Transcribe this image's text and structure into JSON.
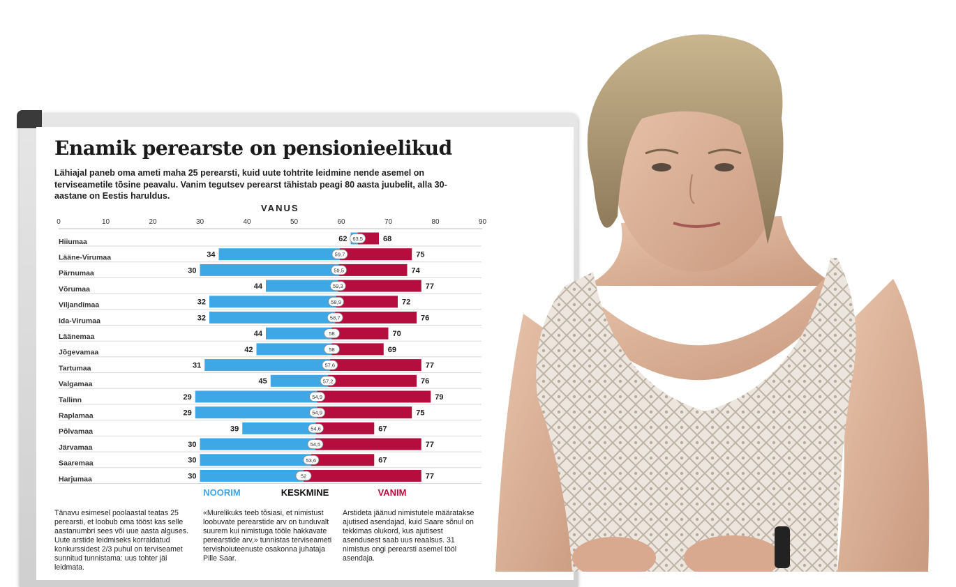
{
  "article": {
    "title": "Enamik perearste on pensionieelikud",
    "subtitle": "Lähiajal paneb oma ameti maha 25 perearsti, kuid uute tohtrite leidmine nende asemel on terviseametile tõsine peavalu.  Vanim tegutsev perearst tähistab peagi 80 aasta juubelit, alla 30-aastane on Eestis haruldus.",
    "columns": [
      "Tänavu esimesel poolaastal teatas 25 perearsti, et loobub oma tööst kas selle aastanumbri sees või uue aasta alguses. Uute arstide leidmiseks korraldatud konkurssidest 2/3 puhul on terviseamet sunnitud tunnistama: uus tohter jäi leidmata.",
      "«Murelikuks teeb tõsiasi, et nimistust loobuvate perearstide arv on tunduvalt suurem kui nimistuga tööle hakkavate perearstide arv,» tunnistas terviseameti tervishoiuteenuste osakonna juhataja Pille Saar.",
      "Arstideta jäänud nimistutele määratakse ajutised asendajad, kuid Saare sõnul on tekkimas olukord, kus ajutisest asendusest saab uus reaalsus. 31 nimistus ongi perearsti asemel tööl asendaja."
    ]
  },
  "photo": {
    "description_icon": "woman-portrait"
  },
  "chart_data": {
    "type": "bar",
    "title": "VANUS",
    "xlim": [
      0,
      90
    ],
    "ticks": [
      0,
      10,
      20,
      30,
      40,
      50,
      60,
      70,
      80,
      90
    ],
    "categories": [
      "Hiiumaa",
      "Lääne-Virumaa",
      "Pärnumaa",
      "Võrumaa",
      "Viljandimaa",
      "Ida-Virumaa",
      "Läänemaa",
      "Jõgevamaa",
      "Tartumaa",
      "Valgamaa",
      "Tallinn",
      "Raplamaa",
      "Põlvamaa",
      "Järvamaa",
      "Saaremaa",
      "Harjumaa"
    ],
    "series": [
      {
        "name": "NOORIM",
        "color": "#3ea8e6",
        "values": [
          62,
          34,
          30,
          44,
          32,
          32,
          44,
          42,
          31,
          45,
          29,
          29,
          39,
          30,
          30,
          30
        ]
      },
      {
        "name": "KESKMINE",
        "color": "#ffffff",
        "values": [
          63.5,
          59.7,
          59.5,
          59.3,
          58.9,
          58.7,
          58,
          58,
          57.6,
          57.2,
          54.9,
          54.9,
          54.6,
          54.5,
          53.6,
          52
        ]
      },
      {
        "name": "VANIM",
        "color": "#b50d3e",
        "values": [
          68,
          75,
          74,
          77,
          72,
          76,
          70,
          69,
          77,
          76,
          79,
          75,
          67,
          77,
          67,
          77
        ]
      }
    ],
    "mean_labels": [
      "63,5",
      "59,7",
      "59,5",
      "59,3",
      "58,9",
      "58,7",
      "58",
      "58",
      "57,6",
      "57,2",
      "54,9",
      "54,9",
      "54,6",
      "54,5",
      "53,6",
      "52"
    ],
    "legend": [
      "NOORIM",
      "KESKMINE",
      "VANIM"
    ],
    "legend_placement": "bottom"
  }
}
